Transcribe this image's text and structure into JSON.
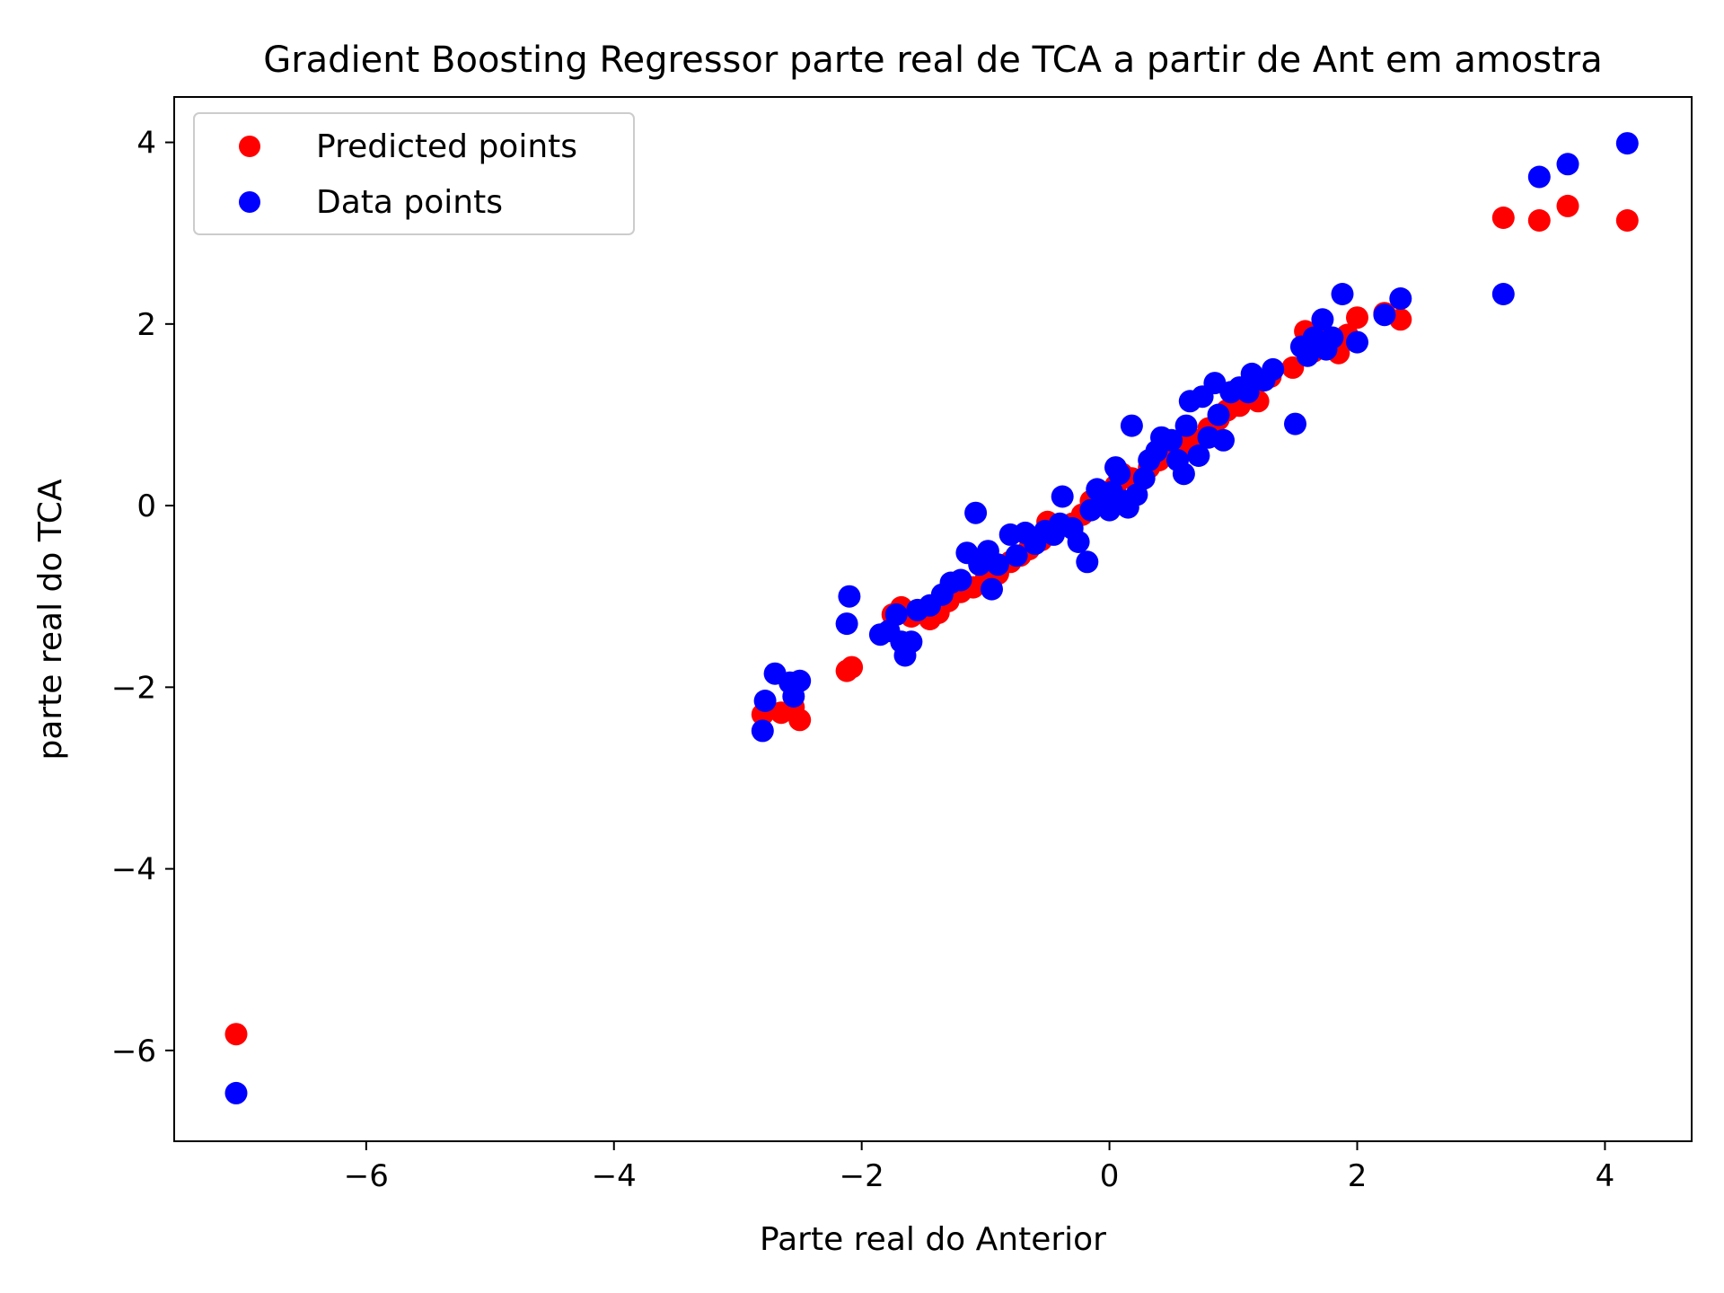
{
  "chart_data": {
    "type": "scatter",
    "title": "Gradient Boosting Regressor parte real de TCA a partir de Ant em amostra",
    "xlabel": "Parte real do Anterior",
    "ylabel": "parte real do TCA",
    "xlim": [
      -7.55,
      4.7
    ],
    "ylim": [
      -7.0,
      4.5
    ],
    "xticks": [
      -6,
      -4,
      -2,
      0,
      2,
      4
    ],
    "yticks": [
      -6,
      -4,
      -2,
      0,
      2,
      4
    ],
    "xtick_labels": [
      "−6",
      "−4",
      "−2",
      "0",
      "2",
      "4"
    ],
    "ytick_labels": [
      "−6",
      "−4",
      "−2",
      "0",
      "2",
      "4"
    ],
    "grid": false,
    "legend_position": "top-left",
    "series": [
      {
        "name": "Predicted points",
        "color": "#ff0000",
        "points": [
          [
            -7.05,
            -5.82
          ],
          [
            -2.8,
            -2.3
          ],
          [
            -2.65,
            -2.28
          ],
          [
            -2.5,
            -2.36
          ],
          [
            -2.55,
            -2.22
          ],
          [
            -2.12,
            -1.82
          ],
          [
            -2.08,
            -1.78
          ],
          [
            -1.75,
            -1.2
          ],
          [
            -1.68,
            -1.12
          ],
          [
            -1.6,
            -1.22
          ],
          [
            -1.45,
            -1.25
          ],
          [
            -1.38,
            -1.18
          ],
          [
            -1.3,
            -1.05
          ],
          [
            -1.2,
            -0.95
          ],
          [
            -1.1,
            -0.9
          ],
          [
            -1.0,
            -0.82
          ],
          [
            -0.9,
            -0.75
          ],
          [
            -0.8,
            -0.62
          ],
          [
            -0.72,
            -0.55
          ],
          [
            -0.65,
            -0.48
          ],
          [
            -0.55,
            -0.38
          ],
          [
            -0.5,
            -0.18
          ],
          [
            -0.42,
            -0.22
          ],
          [
            -0.3,
            -0.2
          ],
          [
            -0.22,
            -0.1
          ],
          [
            -0.15,
            0.05
          ],
          [
            -0.08,
            0.12
          ],
          [
            0.0,
            0.02
          ],
          [
            0.05,
            0.22
          ],
          [
            0.1,
            0.35
          ],
          [
            0.18,
            0.3
          ],
          [
            0.25,
            0.28
          ],
          [
            0.32,
            0.42
          ],
          [
            0.4,
            0.5
          ],
          [
            0.5,
            0.58
          ],
          [
            0.6,
            0.65
          ],
          [
            0.7,
            0.72
          ],
          [
            0.8,
            0.85
          ],
          [
            0.88,
            0.95
          ],
          [
            0.95,
            1.05
          ],
          [
            1.05,
            1.1
          ],
          [
            1.12,
            1.2
          ],
          [
            1.2,
            1.15
          ],
          [
            1.3,
            1.42
          ],
          [
            1.48,
            1.52
          ],
          [
            1.58,
            1.92
          ],
          [
            1.65,
            1.7
          ],
          [
            1.72,
            1.82
          ],
          [
            1.85,
            1.68
          ],
          [
            1.92,
            1.88
          ],
          [
            2.0,
            2.07
          ],
          [
            2.22,
            2.12
          ],
          [
            2.35,
            2.05
          ],
          [
            3.18,
            3.17
          ],
          [
            3.47,
            3.14
          ],
          [
            3.7,
            3.3
          ],
          [
            4.18,
            3.14
          ]
        ]
      },
      {
        "name": "Data points",
        "color": "#0000ff",
        "points": [
          [
            -7.05,
            -6.47
          ],
          [
            -2.8,
            -2.48
          ],
          [
            -2.78,
            -2.15
          ],
          [
            -2.7,
            -1.85
          ],
          [
            -2.55,
            -2.1
          ],
          [
            -2.58,
            -1.95
          ],
          [
            -2.5,
            -1.93
          ],
          [
            -2.12,
            -1.3
          ],
          [
            -2.1,
            -1.0
          ],
          [
            -1.85,
            -1.42
          ],
          [
            -1.78,
            -1.38
          ],
          [
            -1.72,
            -1.2
          ],
          [
            -1.68,
            -1.5
          ],
          [
            -1.65,
            -1.65
          ],
          [
            -1.6,
            -1.5
          ],
          [
            -1.55,
            -1.15
          ],
          [
            -1.45,
            -1.1
          ],
          [
            -1.35,
            -0.98
          ],
          [
            -1.28,
            -0.85
          ],
          [
            -1.2,
            -0.82
          ],
          [
            -1.15,
            -0.52
          ],
          [
            -1.08,
            -0.08
          ],
          [
            -1.05,
            -0.65
          ],
          [
            -0.98,
            -0.5
          ],
          [
            -0.95,
            -0.92
          ],
          [
            -0.9,
            -0.65
          ],
          [
            -0.8,
            -0.32
          ],
          [
            -0.75,
            -0.55
          ],
          [
            -0.68,
            -0.3
          ],
          [
            -0.6,
            -0.42
          ],
          [
            -0.52,
            -0.28
          ],
          [
            -0.45,
            -0.32
          ],
          [
            -0.4,
            -0.2
          ],
          [
            -0.38,
            0.1
          ],
          [
            -0.3,
            -0.25
          ],
          [
            -0.25,
            -0.4
          ],
          [
            -0.18,
            -0.62
          ],
          [
            -0.15,
            -0.05
          ],
          [
            -0.1,
            0.18
          ],
          [
            -0.05,
            0.05
          ],
          [
            0.0,
            -0.05
          ],
          [
            0.02,
            0.15
          ],
          [
            0.05,
            0.42
          ],
          [
            0.08,
            0.35
          ],
          [
            0.12,
            0.05
          ],
          [
            0.15,
            -0.02
          ],
          [
            0.18,
            0.88
          ],
          [
            0.22,
            0.12
          ],
          [
            0.28,
            0.3
          ],
          [
            0.32,
            0.5
          ],
          [
            0.38,
            0.6
          ],
          [
            0.42,
            0.75
          ],
          [
            0.5,
            0.72
          ],
          [
            0.55,
            0.5
          ],
          [
            0.6,
            0.35
          ],
          [
            0.62,
            0.88
          ],
          [
            0.65,
            1.15
          ],
          [
            0.72,
            0.55
          ],
          [
            0.75,
            1.2
          ],
          [
            0.8,
            0.75
          ],
          [
            0.85,
            1.35
          ],
          [
            0.88,
            1.0
          ],
          [
            0.92,
            0.72
          ],
          [
            0.98,
            1.25
          ],
          [
            1.05,
            1.3
          ],
          [
            1.12,
            1.25
          ],
          [
            1.15,
            1.45
          ],
          [
            1.25,
            1.38
          ],
          [
            1.32,
            1.5
          ],
          [
            1.5,
            0.9
          ],
          [
            1.55,
            1.75
          ],
          [
            1.6,
            1.65
          ],
          [
            1.65,
            1.85
          ],
          [
            1.72,
            2.05
          ],
          [
            1.75,
            1.72
          ],
          [
            1.8,
            1.85
          ],
          [
            1.88,
            2.33
          ],
          [
            2.0,
            1.8
          ],
          [
            2.22,
            2.1
          ],
          [
            2.35,
            2.28
          ],
          [
            3.18,
            2.33
          ],
          [
            3.47,
            3.62
          ],
          [
            3.7,
            3.76
          ],
          [
            4.18,
            3.99
          ]
        ]
      }
    ]
  }
}
